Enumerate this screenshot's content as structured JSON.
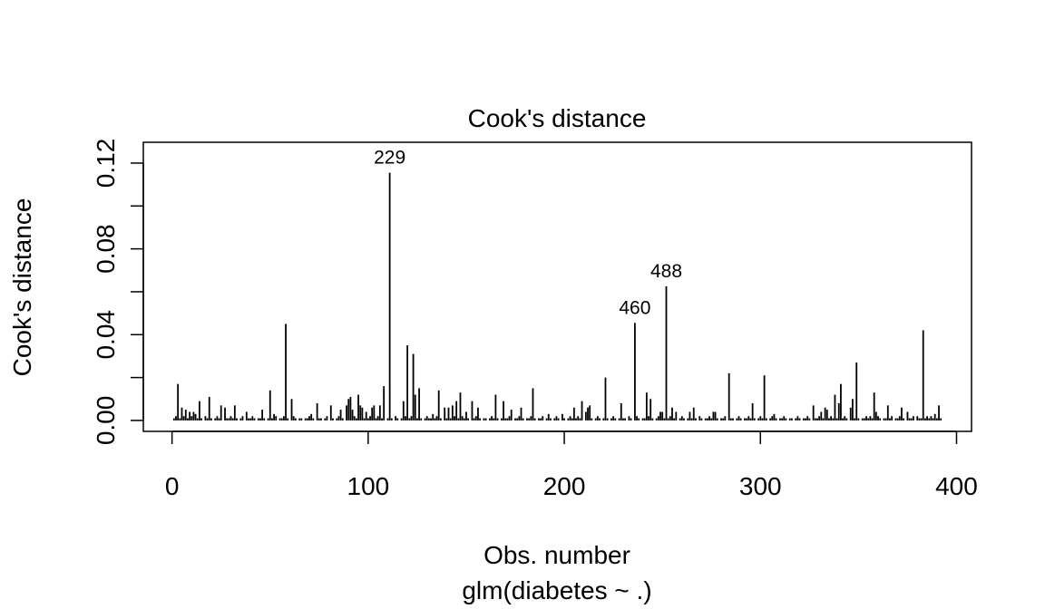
{
  "chart_data": {
    "type": "line-h",
    "title": "Cook's distance",
    "x_label": "Obs. number",
    "y_label": "Cook's distance",
    "subtitle": "glm(diabetes ~ .)",
    "xlim": [
      -14.64,
      407.64
    ],
    "ylim": [
      -0.0051,
      0.1297
    ],
    "xticks": [
      0,
      100,
      200,
      300,
      400
    ],
    "yticks": [
      {
        "value": 0,
        "label": "0.00"
      },
      {
        "value": 0.04,
        "label": "0.04"
      },
      {
        "value": 0.08,
        "label": "0.08"
      },
      {
        "value": 0.12,
        "label": "0.12"
      }
    ],
    "yminor_ticks": [
      0.02,
      0.06,
      0.1
    ],
    "color": "#000000",
    "x": [
      1,
      2,
      3,
      4,
      5,
      6,
      7,
      8,
      9,
      10,
      11,
      12,
      13,
      14,
      15,
      16,
      17,
      18,
      19,
      20,
      21,
      22,
      23,
      24,
      25,
      26,
      27,
      28,
      29,
      30,
      31,
      32,
      33,
      34,
      35,
      36,
      37,
      38,
      39,
      40,
      41,
      42,
      43,
      44,
      45,
      46,
      47,
      48,
      49,
      50,
      51,
      52,
      53,
      54,
      55,
      56,
      57,
      58,
      59,
      60,
      61,
      62,
      63,
      64,
      65,
      66,
      67,
      68,
      69,
      70,
      71,
      72,
      73,
      74,
      75,
      76,
      77,
      78,
      79,
      80,
      81,
      82,
      83,
      84,
      85,
      86,
      87,
      88,
      89,
      90,
      91,
      92,
      93,
      94,
      95,
      96,
      97,
      98,
      99,
      100,
      101,
      102,
      103,
      104,
      105,
      106,
      107,
      108,
      109,
      110,
      111,
      112,
      113,
      114,
      115,
      116,
      117,
      118,
      119,
      120,
      121,
      122,
      123,
      124,
      125,
      126,
      127,
      128,
      129,
      130,
      131,
      132,
      133,
      134,
      135,
      136,
      137,
      138,
      139,
      140,
      141,
      142,
      143,
      144,
      145,
      146,
      147,
      148,
      149,
      150,
      151,
      152,
      153,
      154,
      155,
      156,
      157,
      158,
      159,
      160,
      161,
      162,
      163,
      164,
      165,
      166,
      167,
      168,
      169,
      170,
      171,
      172,
      173,
      174,
      175,
      176,
      177,
      178,
      179,
      180,
      181,
      182,
      183,
      184,
      185,
      186,
      187,
      188,
      189,
      190,
      191,
      192,
      193,
      194,
      195,
      196,
      197,
      198,
      199,
      200,
      201,
      202,
      203,
      204,
      205,
      206,
      207,
      208,
      209,
      210,
      211,
      212,
      213,
      214,
      215,
      216,
      217,
      218,
      219,
      220,
      221,
      222,
      223,
      224,
      225,
      226,
      227,
      228,
      229,
      230,
      231,
      232,
      233,
      234,
      235,
      236,
      237,
      238,
      239,
      240,
      241,
      242,
      243,
      244,
      245,
      246,
      247,
      248,
      249,
      250,
      251,
      252,
      253,
      254,
      255,
      256,
      257,
      258,
      259,
      260,
      261,
      262,
      263,
      264,
      265,
      266,
      267,
      268,
      269,
      270,
      271,
      272,
      273,
      274,
      275,
      276,
      277,
      278,
      279,
      280,
      281,
      282,
      283,
      284,
      285,
      286,
      287,
      288,
      289,
      290,
      291,
      292,
      293,
      294,
      295,
      296,
      297,
      298,
      299,
      300,
      301,
      302,
      303,
      304,
      305,
      306,
      307,
      308,
      309,
      310,
      311,
      312,
      313,
      314,
      315,
      316,
      317,
      318,
      319,
      320,
      321,
      322,
      323,
      324,
      325,
      326,
      327,
      328,
      329,
      330,
      331,
      332,
      333,
      334,
      335,
      336,
      337,
      338,
      339,
      340,
      341,
      342,
      343,
      344,
      345,
      346,
      347,
      348,
      349,
      350,
      351,
      352,
      353,
      354,
      355,
      356,
      357,
      358,
      359,
      360,
      361,
      362,
      363,
      364,
      365,
      366,
      367,
      368,
      369,
      370,
      371,
      372,
      373,
      374,
      375,
      376,
      377,
      378,
      379,
      380,
      381,
      382,
      383,
      384,
      385,
      386,
      387,
      388,
      389,
      390,
      391,
      392
    ],
    "values": [
      0.001,
      0.002,
      0.017,
      0.001,
      0.006,
      0.002,
      0.005,
      0.001,
      0.004,
      0.002,
      0.004,
      0.003,
      0.001,
      0.009,
      0.001,
      0.0,
      0.002,
      0.001,
      0.011,
      0.001,
      0.0,
      0.001,
      0.002,
      0.001,
      0.007,
      0.0,
      0.006,
      0.001,
      0.001,
      0.002,
      0.001,
      0.007,
      0.001,
      0.0,
      0.001,
      0.002,
      0.0,
      0.004,
      0.001,
      0.001,
      0.002,
      0.001,
      0.0,
      0.001,
      0.001,
      0.005,
      0.001,
      0.0,
      0.001,
      0.014,
      0.001,
      0.003,
      0.002,
      0.0,
      0.001,
      0.001,
      0.002,
      0.045,
      0.001,
      0.0,
      0.01,
      0.002,
      0.001,
      0.0,
      0.001,
      0.001,
      0.0,
      0.001,
      0.001,
      0.002,
      0.003,
      0.001,
      0.0,
      0.008,
      0.001,
      0.001,
      0.0,
      0.001,
      0.002,
      0.0,
      0.007,
      0.001,
      0.0,
      0.001,
      0.002,
      0.005,
      0.001,
      0.0,
      0.007,
      0.01,
      0.011,
      0.005,
      0.002,
      0.001,
      0.012,
      0.007,
      0.006,
      0.001,
      0.004,
      0.001,
      0.002,
      0.006,
      0.007,
      0.001,
      0.002,
      0.007,
      0.001,
      0.016,
      0.0,
      0.001,
      0.1155,
      0.001,
      0.0,
      0.002,
      0.001,
      0.0,
      0.001,
      0.009,
      0.002,
      0.035,
      0.001,
      0.002,
      0.031,
      0.012,
      0.001,
      0.015,
      0.001,
      0.0,
      0.001,
      0.002,
      0.001,
      0.001,
      0.003,
      0.001,
      0.002,
      0.014,
      0.001,
      0.0,
      0.006,
      0.001,
      0.006,
      0.001,
      0.007,
      0.002,
      0.009,
      0.001,
      0.013,
      0.002,
      0.001,
      0.004,
      0.001,
      0.0,
      0.009,
      0.001,
      0.002,
      0.006,
      0.001,
      0.0,
      0.001,
      0.001,
      0.0,
      0.001,
      0.002,
      0.001,
      0.012,
      0.001,
      0.0,
      0.001,
      0.009,
      0.001,
      0.001,
      0.002,
      0.005,
      0.0,
      0.001,
      0.001,
      0.002,
      0.006,
      0.001,
      0.0,
      0.001,
      0.001,
      0.002,
      0.015,
      0.001,
      0.0,
      0.001,
      0.001,
      0.002,
      0.0,
      0.001,
      0.003,
      0.001,
      0.0,
      0.001,
      0.002,
      0.001,
      0.0,
      0.003,
      0.001,
      0.0,
      0.001,
      0.002,
      0.001,
      0.006,
      0.001,
      0.002,
      0.001,
      0.009,
      0.0,
      0.004,
      0.006,
      0.007,
      0.001,
      0.0,
      0.001,
      0.002,
      0.001,
      0.0,
      0.001,
      0.02,
      0.001,
      0.0,
      0.001,
      0.002,
      0.001,
      0.0,
      0.001,
      0.008,
      0.001,
      0.001,
      0.0,
      0.002,
      0.001,
      0.0,
      0.0455,
      0.002,
      0.001,
      0.0,
      0.001,
      0.001,
      0.013,
      0.002,
      0.01,
      0.001,
      0.0,
      0.001,
      0.002,
      0.004,
      0.004,
      0.001,
      0.0625,
      0.001,
      0.002,
      0.006,
      0.001,
      0.004,
      0.0,
      0.001,
      0.002,
      0.001,
      0.0,
      0.001,
      0.004,
      0.001,
      0.006,
      0.001,
      0.0,
      0.002,
      0.001,
      0.0,
      0.001,
      0.001,
      0.002,
      0.001,
      0.004,
      0.004,
      0.001,
      0.0,
      0.001,
      0.001,
      0.002,
      0.0,
      0.022,
      0.001,
      0.001,
      0.0,
      0.001,
      0.002,
      0.001,
      0.0,
      0.001,
      0.001,
      0.002,
      0.001,
      0.008,
      0.001,
      0.0,
      0.001,
      0.002,
      0.001,
      0.021,
      0.001,
      0.0,
      0.001,
      0.002,
      0.003,
      0.001,
      0.0,
      0.001,
      0.001,
      0.002,
      0.001,
      0.0,
      0.001,
      0.001,
      0.0,
      0.001,
      0.002,
      0.001,
      0.0,
      0.001,
      0.001,
      0.002,
      0.001,
      0.0,
      0.007,
      0.001,
      0.001,
      0.002,
      0.004,
      0.001,
      0.006,
      0.005,
      0.001,
      0.002,
      0.001,
      0.012,
      0.001,
      0.008,
      0.017,
      0.001,
      0.002,
      0.001,
      0.0,
      0.006,
      0.01,
      0.001,
      0.027,
      0.001,
      0.0,
      0.001,
      0.001,
      0.002,
      0.001,
      0.002,
      0.001,
      0.013,
      0.004,
      0.002,
      0.001,
      0.0,
      0.001,
      0.001,
      0.007,
      0.001,
      0.002,
      0.0,
      0.001,
      0.001,
      0.002,
      0.006,
      0.001,
      0.0,
      0.004,
      0.001,
      0.001,
      0.002,
      0.0,
      0.002,
      0.001,
      0.001,
      0.042,
      0.001,
      0.002,
      0.001,
      0.002,
      0.001,
      0.003,
      0.001,
      0.007,
      0.001
    ],
    "annotations": [
      {
        "x": 111,
        "label": "229"
      },
      {
        "x": 236,
        "label": "460"
      },
      {
        "x": 252,
        "label": "488"
      }
    ]
  }
}
